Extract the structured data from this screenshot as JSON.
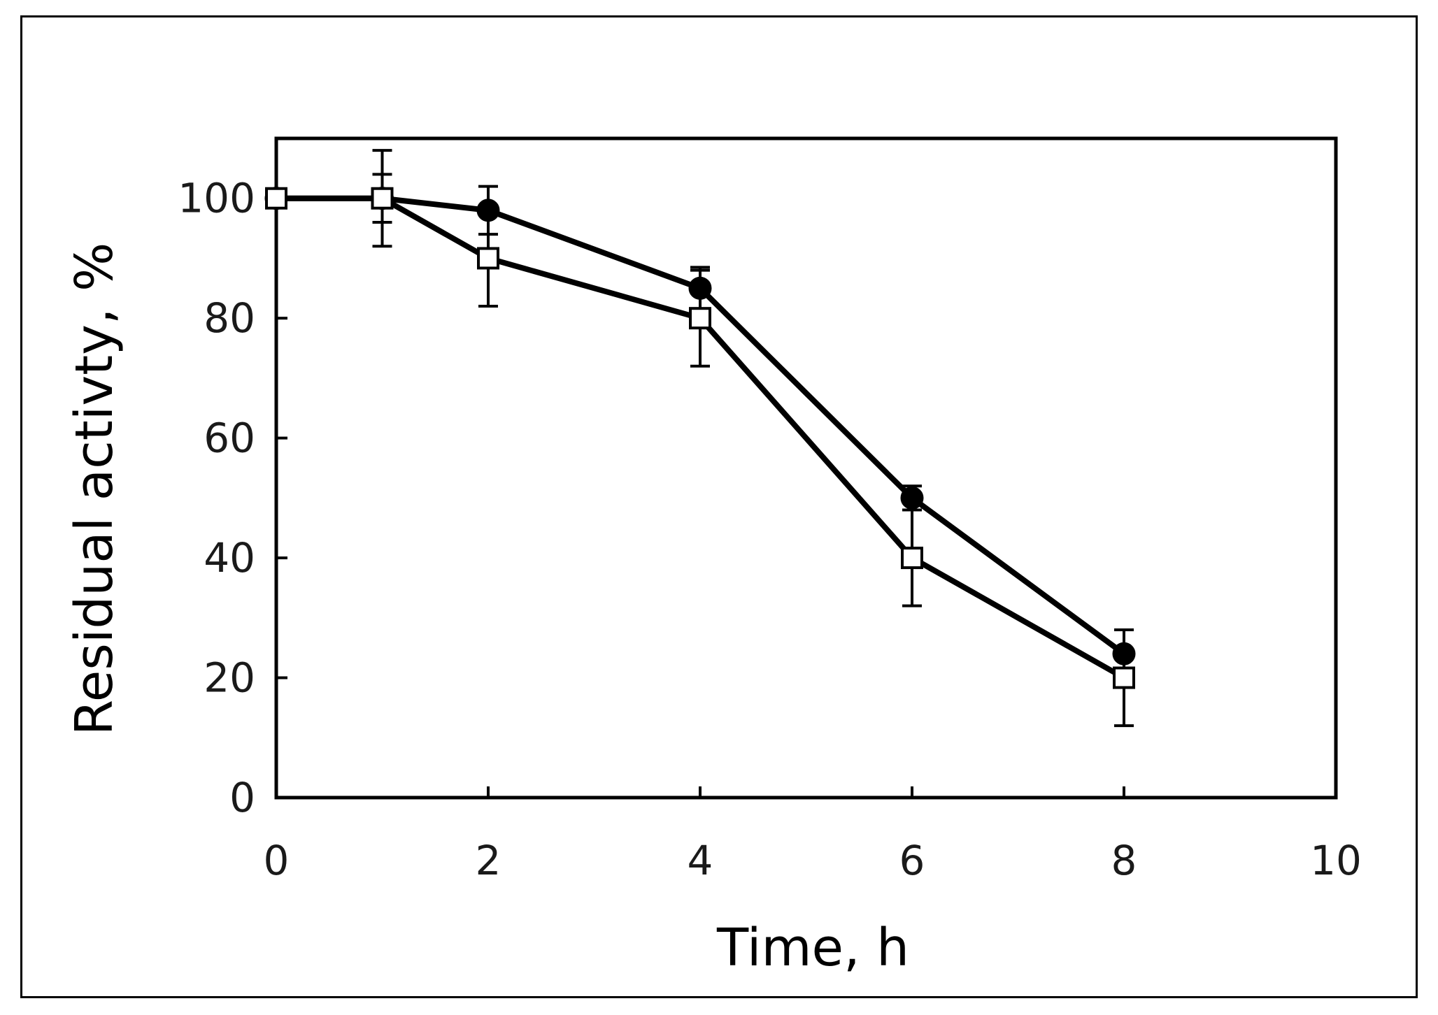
{
  "chart_data": {
    "type": "line",
    "title": "",
    "xlabel": "Time, h",
    "ylabel": "Residual activty, %",
    "xlim": [
      0,
      10
    ],
    "ylim": [
      0,
      110
    ],
    "x_ticks": [
      0,
      2,
      4,
      6,
      8,
      10
    ],
    "y_ticks": [
      0,
      20,
      40,
      60,
      80,
      100
    ],
    "grid": false,
    "legend": "none",
    "colors": {
      "line": "#000000",
      "open_fill": "#ffffff",
      "closed_fill": "#000000"
    },
    "series": [
      {
        "name": "filled circles",
        "marker": "circle-filled",
        "x": [
          0,
          1,
          2,
          4,
          6,
          8
        ],
        "values": [
          100,
          100,
          98,
          85,
          50,
          24
        ],
        "error": [
          0,
          4,
          4,
          3.5,
          2,
          4
        ]
      },
      {
        "name": "open squares",
        "marker": "square-open",
        "x": [
          0,
          1,
          2,
          4,
          6,
          8
        ],
        "values": [
          100,
          100,
          90,
          80,
          40,
          20
        ],
        "error": [
          0,
          8,
          8,
          8,
          8,
          8
        ]
      }
    ]
  }
}
